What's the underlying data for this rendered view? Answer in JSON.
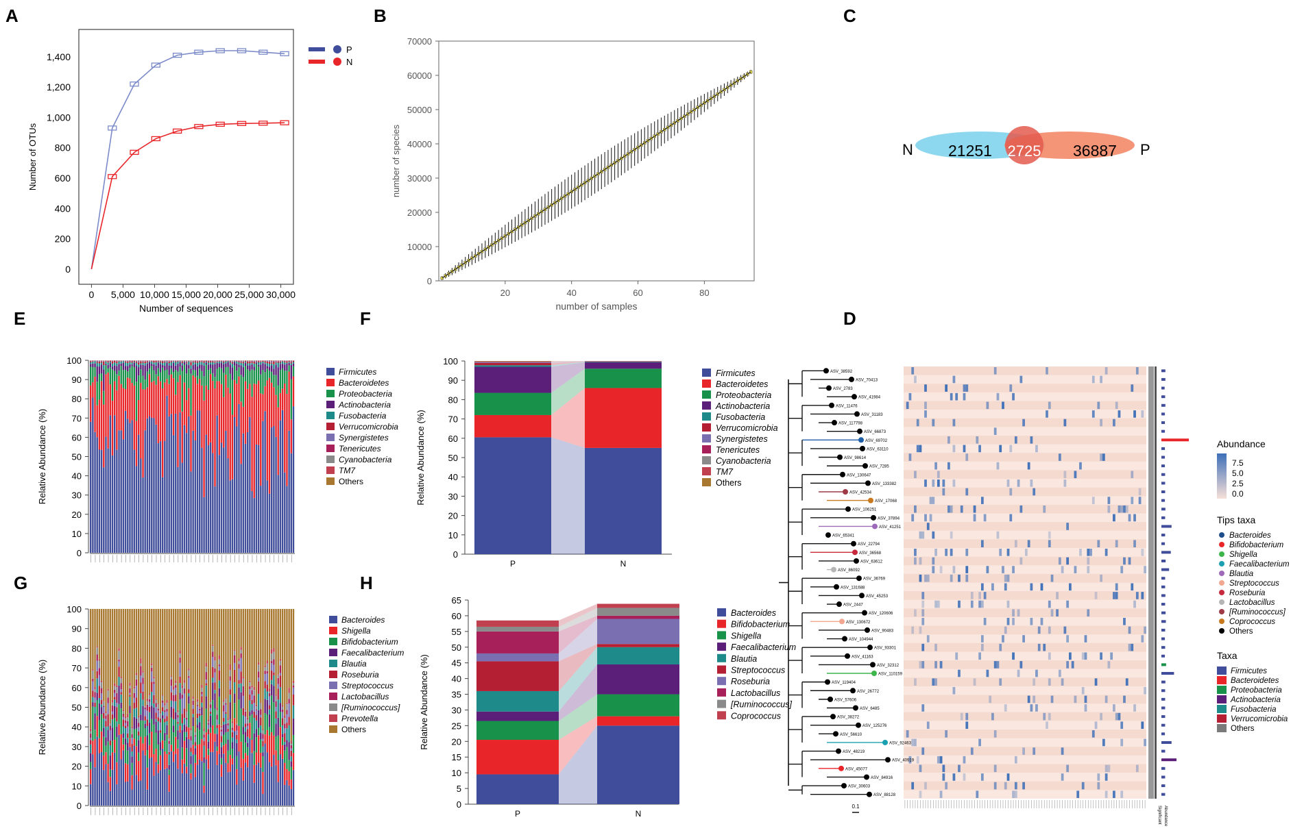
{
  "panel_labels": {
    "A": "A",
    "B": "B",
    "C": "C",
    "D": "D",
    "E": "E",
    "F": "F",
    "G": "G",
    "H": "H"
  },
  "chart_data": [
    {
      "panel": "A",
      "type": "line",
      "xlabel": "Number of sequences",
      "ylabel": "Number of OTUs",
      "x_ticks": [
        0,
        5000,
        10000,
        15000,
        20000,
        25000,
        30000
      ],
      "x_tick_labels": [
        "0",
        "5,000",
        "10,000",
        "15,000",
        "20,000",
        "25,000",
        "30,000"
      ],
      "y_ticks": [
        0,
        200,
        400,
        600,
        800,
        1000,
        1200,
        1400
      ],
      "y_tick_labels": [
        "0",
        "200",
        "400",
        "600",
        "800",
        "1,000",
        "1,200",
        "1,400"
      ],
      "xlim": [
        -2000,
        32000
      ],
      "ylim": [
        -100,
        1580
      ],
      "legend": [
        {
          "name": "P",
          "color": "#3f4d9a"
        },
        {
          "name": "N",
          "color": "#e8262a"
        }
      ],
      "series": [
        {
          "name": "P",
          "color": "#7b8ac8",
          "x": [
            0,
            3300,
            6800,
            10200,
            13600,
            17000,
            20400,
            23800,
            27200,
            30600
          ],
          "y": [
            0,
            930,
            1220,
            1345,
            1410,
            1430,
            1440,
            1440,
            1430,
            1420
          ]
        },
        {
          "name": "N",
          "color": "#e8262a",
          "x": [
            0,
            3300,
            6800,
            10200,
            13600,
            17000,
            20400,
            23800,
            27200,
            30600
          ],
          "y": [
            0,
            610,
            770,
            860,
            910,
            940,
            955,
            960,
            962,
            965
          ]
        }
      ]
    },
    {
      "panel": "B",
      "type": "line",
      "xlabel": "number of samples",
      "ylabel": "number of species",
      "x_ticks": [
        20,
        40,
        60,
        80
      ],
      "y_ticks": [
        0,
        10000,
        20000,
        30000,
        40000,
        50000,
        60000,
        70000
      ],
      "y_tick_labels": [
        "0",
        "10000",
        "20000",
        "30000",
        "40000",
        "50000",
        "60000",
        "70000"
      ],
      "xlim": [
        0,
        95
      ],
      "ylim": [
        0,
        70000
      ],
      "n_samples": 94,
      "y_start": 800,
      "y_end": 61000,
      "err_max": 4500
    },
    {
      "panel": "C",
      "type": "venn",
      "sets": [
        {
          "name": "N",
          "only": "21251",
          "color": "#8ed8ef"
        },
        {
          "name": "P",
          "only": "36887",
          "color": "#f48a68"
        }
      ],
      "shared": "2725"
    },
    {
      "panel": "D",
      "type": "heatmap",
      "leaves": [
        "ASV_38592",
        "ASV_70413",
        "ASV_2783",
        "ASV_41984",
        "ASV_11476",
        "ASV_31183",
        "ASV_117798",
        "ASV_66873",
        "ASV_69702",
        "ASV_63110",
        "ASV_98614",
        "ASV_7285",
        "ASV_130647",
        "ASV_133382",
        "ASV_42534",
        "ASV_17068",
        "ASV_106251",
        "ASV_37894",
        "ASV_41251",
        "ASV_65341",
        "ASV_22794",
        "ASV_36568",
        "ASV_63612",
        "ASV_86092",
        "ASV_36769",
        "ASV_131688",
        "ASV_45253",
        "ASV_2447",
        "ASV_120606",
        "ASV_130672",
        "ASV_90483",
        "ASV_104944",
        "ASV_93301",
        "ASV_41163",
        "ASV_32312",
        "ASV_110159",
        "ASV_119404",
        "ASV_26772",
        "ASV_57606",
        "ASV_6485",
        "ASV_38272",
        "ASV_125276",
        "ASV_56610",
        "ASV_92463",
        "ASV_48219",
        "ASV_40919",
        "ASV_45077",
        "ASV_84916",
        "ASV_30603",
        "ASV_88128"
      ],
      "leaf_colors": [
        "#000000",
        "#000000",
        "#000000",
        "#000000",
        "#000000",
        "#000000",
        "#000000",
        "#000000",
        "#1f5fa8",
        "#000000",
        "#000000",
        "#000000",
        "#000000",
        "#000000",
        "#9e3a46",
        "#c8781e",
        "#000000",
        "#000000",
        "#9c6ab8",
        "#000000",
        "#000000",
        "#c8283c",
        "#000000",
        "#b5b5b5",
        "#000000",
        "#000000",
        "#000000",
        "#000000",
        "#000000",
        "#f2a890",
        "#000000",
        "#000000",
        "#000000",
        "#000000",
        "#000000",
        "#3cb54a",
        "#000000",
        "#000000",
        "#000000",
        "#000000",
        "#000000",
        "#000000",
        "#000000",
        "#1aa0b0",
        "#000000",
        "#000000",
        "#e8262a",
        "#000000",
        "#000000",
        "#000000"
      ],
      "row_taxa": [
        "Firmicutes",
        "Firmicutes",
        "Firmicutes",
        "Firmicutes",
        "Firmicutes",
        "Firmicutes",
        "Firmicutes",
        "Firmicutes",
        "Bacteroidetes",
        "Firmicutes",
        "Firmicutes",
        "Firmicutes",
        "Firmicutes",
        "Firmicutes",
        "Firmicutes",
        "Firmicutes",
        "Firmicutes",
        "Firmicutes",
        "Firmicutes",
        "Firmicutes",
        "Firmicutes",
        "Firmicutes",
        "Firmicutes",
        "Firmicutes",
        "Firmicutes",
        "Firmicutes",
        "Firmicutes",
        "Firmicutes",
        "Firmicutes",
        "Firmicutes",
        "Firmicutes",
        "Firmicutes",
        "Firmicutes",
        "Firmicutes",
        "Proteobacteria",
        "Firmicutes",
        "Firmicutes",
        "Firmicutes",
        "Firmicutes",
        "Firmicutes",
        "Firmicutes",
        "Firmicutes",
        "Firmicutes",
        "Firmicutes",
        "Firmicutes",
        "Actinobacteria",
        "Firmicutes",
        "Firmicutes",
        "Firmicutes",
        "Firmicutes"
      ],
      "row_abundance": [
        0.05,
        0.05,
        0.02,
        0.04,
        0.05,
        0.03,
        0.03,
        0.03,
        1.0,
        0.03,
        0.03,
        0.03,
        0.04,
        0.04,
        0.04,
        0.03,
        0.05,
        0.04,
        0.3,
        0.04,
        0.03,
        0.27,
        0.06,
        0.2,
        0.04,
        0.04,
        0.05,
        0.04,
        0.06,
        0.07,
        0.04,
        0.03,
        0.04,
        0.03,
        0.08,
        0.4,
        0.05,
        0.04,
        0.04,
        0.04,
        0.04,
        0.04,
        0.03,
        0.3,
        0.04,
        0.5,
        0.04,
        0.04,
        0.04,
        0.04
      ],
      "n_cols": 94,
      "scale_bar": "0.1",
      "side_labels": [
        "Significant",
        "Abundance"
      ],
      "abundance_legend": {
        "title": "Abundance",
        "ticks": [
          "7.5",
          "5.0",
          "2.5",
          "0.0"
        ]
      },
      "tips_legend": {
        "title": "Tips taxa",
        "items": [
          {
            "name": "Bacteroides",
            "color": "#1f4e8c"
          },
          {
            "name": "Bifidobacterium",
            "color": "#e8262a"
          },
          {
            "name": "Shigella",
            "color": "#3cb54a"
          },
          {
            "name": "Faecalibacterium",
            "color": "#1aa0b0"
          },
          {
            "name": "Blautia",
            "color": "#9c6ab8"
          },
          {
            "name": "Streptococcus",
            "color": "#f2a890"
          },
          {
            "name": "Roseburia",
            "color": "#c8283c"
          },
          {
            "name": "Lactobacillus",
            "color": "#b5b5b5"
          },
          {
            "name": "[Ruminococcus]",
            "color": "#9e3a46"
          },
          {
            "name": "Coprococcus",
            "color": "#c8781e"
          },
          {
            "name": "Others",
            "color": "#000000"
          }
        ]
      },
      "taxa_legend": {
        "title": "Taxa",
        "items": [
          {
            "name": "Firmicutes",
            "color": "#3f4d9a"
          },
          {
            "name": "Bacteroidetes",
            "color": "#e8262a"
          },
          {
            "name": "Proteobacteria",
            "color": "#18924a"
          },
          {
            "name": "Actinobacteria",
            "color": "#5b1f7a"
          },
          {
            "name": "Fusobacteria",
            "color": "#1f8a8a"
          },
          {
            "name": "Verrucomicrobia",
            "color": "#b51f33"
          },
          {
            "name": "Others",
            "color": "#7a7a7a"
          }
        ]
      }
    },
    {
      "panel": "E",
      "type": "bar",
      "stacked": true,
      "ylabel": "Relative Abundance (%)",
      "y_ticks": [
        0,
        10,
        20,
        30,
        40,
        50,
        60,
        70,
        80,
        90,
        100
      ],
      "ylim": [
        0,
        100
      ],
      "n_samples": 94,
      "categories": [
        "Firmicutes",
        "Bacteroidetes",
        "Proteobacteria",
        "Actinobacteria",
        "Fusobacteria",
        "Verrucomicrobia",
        "Synergistetes",
        "Tenericutes",
        "Cyanobacteria",
        "TM7",
        "Others"
      ],
      "colors": [
        "#3f4d9a",
        "#e8262a",
        "#18924a",
        "#5b1f7a",
        "#1f8a8a",
        "#b51f33",
        "#7a6fb0",
        "#a8205a",
        "#8a8a8a",
        "#c04050",
        "#a87830"
      ],
      "mean_values": [
        58,
        29,
        8,
        3,
        1,
        0.5,
        0.2,
        0.1,
        0.1,
        0.05,
        0.05
      ]
    },
    {
      "panel": "F",
      "type": "bar",
      "stacked": true,
      "ylabel": "Relative Abundance (%)",
      "categories": [
        "P",
        "N"
      ],
      "y_ticks": [
        0,
        10,
        20,
        30,
        40,
        50,
        60,
        70,
        80,
        90,
        100
      ],
      "ylim": [
        0,
        100
      ],
      "series": [
        {
          "name": "Firmicutes",
          "color": "#3f4d9a",
          "values": [
            60.5,
            55
          ]
        },
        {
          "name": "Bacteroidetes",
          "color": "#e8262a",
          "values": [
            11.5,
            31
          ]
        },
        {
          "name": "Proteobacteria",
          "color": "#18924a",
          "values": [
            11.5,
            10
          ]
        },
        {
          "name": "Actinobacteria",
          "color": "#5b1f7a",
          "values": [
            13.5,
            3.3
          ]
        },
        {
          "name": "Fusobacteria",
          "color": "#1f8a8a",
          "values": [
            0.8,
            0.3
          ]
        },
        {
          "name": "Verrucomicrobia",
          "color": "#b51f33",
          "values": [
            1.2,
            0.2
          ]
        },
        {
          "name": "Synergistetes",
          "color": "#7a6fb0",
          "values": [
            0.3,
            0.05
          ]
        },
        {
          "name": "Tenericutes",
          "color": "#a8205a",
          "values": [
            0.2,
            0.05
          ]
        },
        {
          "name": "Cyanobacteria",
          "color": "#8a8a8a",
          "values": [
            0.2,
            0.05
          ]
        },
        {
          "name": "TM7",
          "color": "#c04050",
          "values": [
            0.1,
            0.03
          ]
        },
        {
          "name": "Others",
          "color": "#a87830",
          "values": [
            0.2,
            0.02
          ]
        }
      ]
    },
    {
      "panel": "G",
      "type": "bar",
      "stacked": true,
      "ylabel": "Relative Abundance (%)",
      "y_ticks": [
        0,
        10,
        20,
        30,
        40,
        50,
        60,
        70,
        80,
        90,
        100
      ],
      "ylim": [
        0,
        100
      ],
      "n_samples": 94,
      "categories": [
        "Bacteroides",
        "Shigella",
        "Bifidobacterium",
        "Faecalibacterium",
        "Blautia",
        "Roseburia",
        "Streptococcus",
        "Lactobacillus",
        "[Ruminococcus]",
        "Prevotella",
        "Others"
      ],
      "colors": [
        "#3f4d9a",
        "#e8262a",
        "#18924a",
        "#5b1f7a",
        "#1f8a8a",
        "#b51f33",
        "#7a6fb0",
        "#a8205a",
        "#8a8a8a",
        "#c04050",
        "#a87830"
      ],
      "mean_values": [
        20,
        8,
        8,
        5,
        4,
        3,
        3,
        2,
        2,
        1,
        44
      ]
    },
    {
      "panel": "H",
      "type": "bar",
      "stacked": true,
      "ylabel": "Relative Abundance (%)",
      "categories": [
        "P",
        "N"
      ],
      "y_ticks": [
        0,
        5,
        10,
        15,
        20,
        25,
        30,
        35,
        40,
        45,
        50,
        55,
        60,
        65
      ],
      "ylim": [
        0,
        65
      ],
      "series": [
        {
          "name": "Bacteroides",
          "color": "#3f4d9a",
          "values": [
            9.5,
            25
          ]
        },
        {
          "name": "Bifidobacterium",
          "color": "#e8262a",
          "values": [
            11,
            3
          ]
        },
        {
          "name": "Shigella",
          "color": "#18924a",
          "values": [
            6,
            7
          ]
        },
        {
          "name": "Faecalibacterium",
          "color": "#5b1f7a",
          "values": [
            3,
            9.5
          ]
        },
        {
          "name": "Blautia",
          "color": "#1f8a8a",
          "values": [
            6.5,
            5.5
          ]
        },
        {
          "name": "Streptococcus",
          "color": "#b51f33",
          "values": [
            9.5,
            1
          ]
        },
        {
          "name": "Roseburia",
          "color": "#7a6fb0",
          "values": [
            2.5,
            8
          ]
        },
        {
          "name": "Lactobacillus",
          "color": "#a8205a",
          "values": [
            7,
            1
          ]
        },
        {
          "name": "[Ruminococcus]",
          "color": "#8a8a8a",
          "values": [
            1.5,
            2.5
          ]
        },
        {
          "name": "Coprococcus",
          "color": "#c04050",
          "values": [
            2,
            1.3
          ]
        }
      ]
    }
  ]
}
